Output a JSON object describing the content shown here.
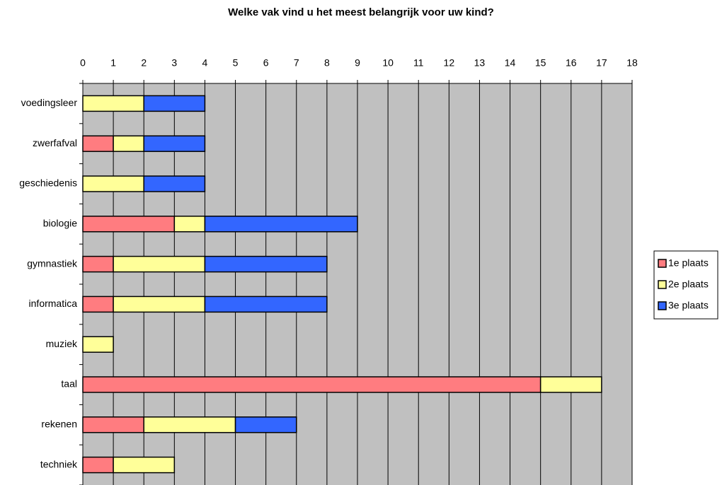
{
  "chart_data": {
    "type": "stacked-barh",
    "title": "Welke vak vind u het meest belangrijk voor uw kind?",
    "categories": [
      "voedingsleer",
      "zwerfafval",
      "geschiedenis",
      "biologie",
      "gymnastiek",
      "informatica",
      "muziek",
      "taal",
      "rekenen",
      "techniek"
    ],
    "series": [
      {
        "name": "1e plaats",
        "color": "#ff7c80",
        "values": [
          0,
          1,
          0,
          3,
          1,
          1,
          0,
          15,
          2,
          1
        ]
      },
      {
        "name": "2e plaats",
        "color": "#ffff99",
        "values": [
          2,
          1,
          2,
          1,
          3,
          3,
          1,
          2,
          3,
          2
        ]
      },
      {
        "name": "3e plaats",
        "color": "#3366ff",
        "values": [
          2,
          2,
          2,
          5,
          4,
          4,
          0,
          0,
          2,
          0
        ]
      }
    ],
    "xlim": [
      0,
      18
    ],
    "xticks": [
      0,
      1,
      2,
      3,
      4,
      5,
      6,
      7,
      8,
      9,
      10,
      11,
      12,
      13,
      14,
      15,
      16,
      17,
      18
    ],
    "grid": true,
    "legend": "right"
  }
}
